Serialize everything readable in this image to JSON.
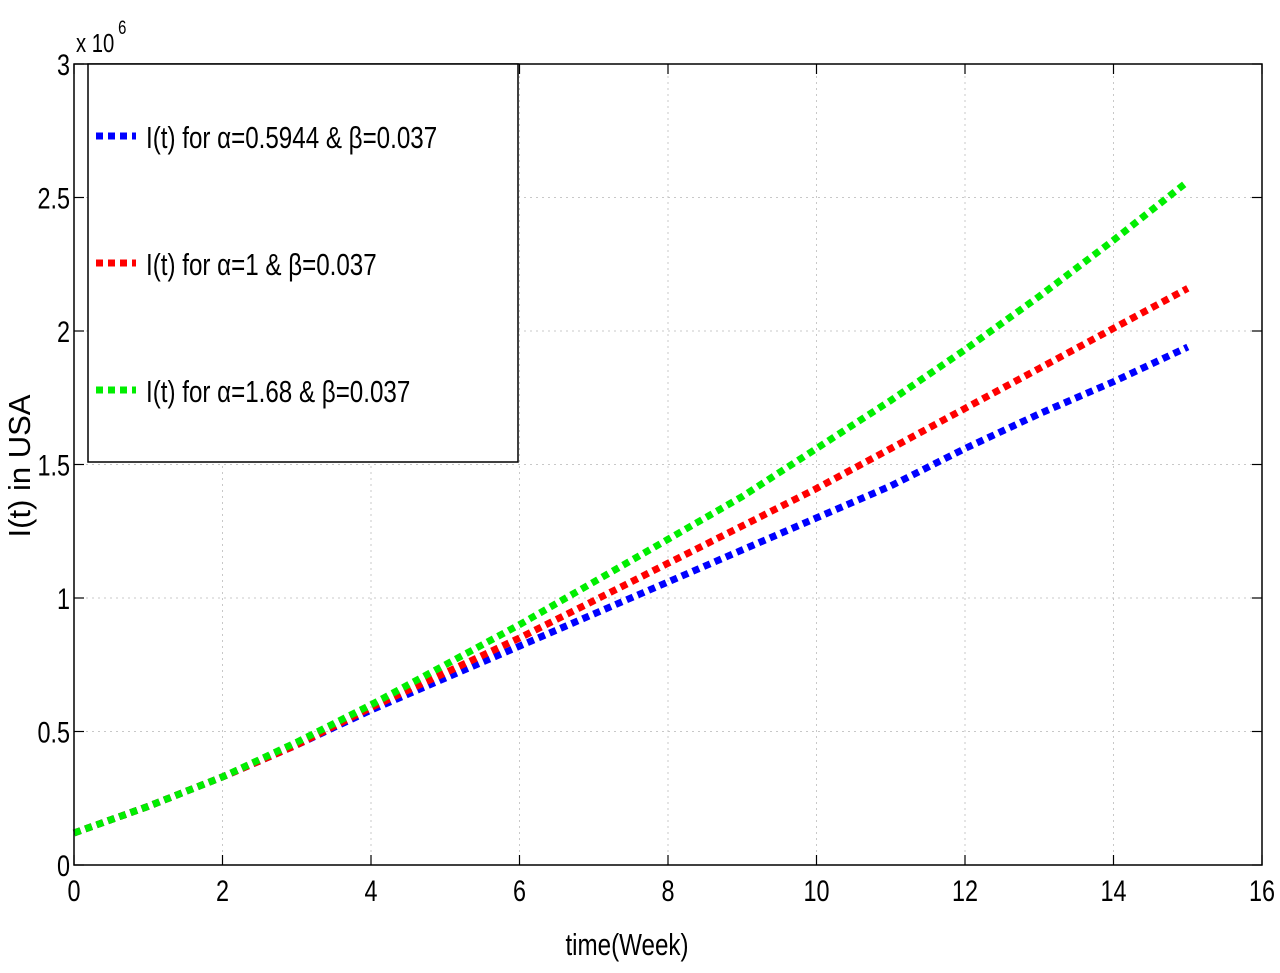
{
  "chart_data": {
    "type": "line",
    "xlabel": "time(Week)",
    "ylabel": "I(t) in USA",
    "y_exponent_label": "x 10",
    "y_exponent_power": "6",
    "xlim": [
      0,
      16
    ],
    "ylim": [
      0,
      3000000
    ],
    "xticks": [
      0,
      2,
      4,
      6,
      8,
      10,
      12,
      14,
      16
    ],
    "yticks": [
      0,
      500000,
      1000000,
      1500000,
      2000000,
      2500000,
      3000000
    ],
    "xtick_labels": [
      "0",
      "2",
      "4",
      "6",
      "8",
      "10",
      "12",
      "14",
      "16"
    ],
    "ytick_labels": [
      "0",
      "0.5",
      "1",
      "1.5",
      "2",
      "2.5",
      "3"
    ],
    "grid": true,
    "legend_position": "top-left",
    "x": [
      0,
      1,
      2,
      3,
      4,
      5,
      6,
      7,
      8,
      9,
      10,
      11,
      12,
      13,
      14,
      15
    ],
    "series": [
      {
        "name": "I(t) for α=0.5944 & β=0.037",
        "color": "#0000ff",
        "values": [
          120000,
          220000,
          330000,
          450000,
          580000,
          700000,
          820000,
          940000,
          1060000,
          1180000,
          1300000,
          1420000,
          1560000,
          1690000,
          1810000,
          1940000
        ]
      },
      {
        "name": "I(t) for α=1 & β=0.037",
        "color": "#ff0000",
        "values": [
          120000,
          220000,
          330000,
          450000,
          590000,
          720000,
          850000,
          990000,
          1130000,
          1270000,
          1410000,
          1560000,
          1710000,
          1860000,
          2010000,
          2160000
        ]
      },
      {
        "name": "I(t) for α=1.68 & β=0.037",
        "color": "#00ee00",
        "values": [
          120000,
          220000,
          330000,
          460000,
          600000,
          750000,
          900000,
          1060000,
          1220000,
          1380000,
          1560000,
          1740000,
          1930000,
          2130000,
          2340000,
          2560000
        ]
      }
    ]
  }
}
